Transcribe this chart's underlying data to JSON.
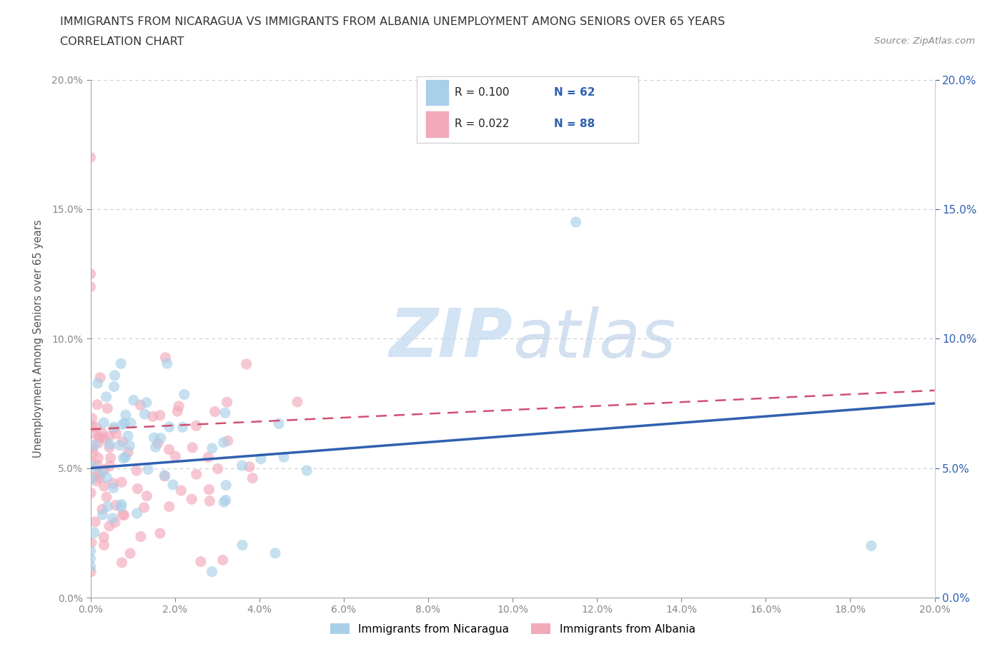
{
  "title_line1": "IMMIGRANTS FROM NICARAGUA VS IMMIGRANTS FROM ALBANIA UNEMPLOYMENT AMONG SENIORS OVER 65 YEARS",
  "title_line2": "CORRELATION CHART",
  "source_text": "Source: ZipAtlas.com",
  "ylabel": "Unemployment Among Seniors over 65 years",
  "xlim": [
    0.0,
    0.2
  ],
  "ylim": [
    0.0,
    0.2
  ],
  "nicaragua_color": "#A8D0E8",
  "albania_color": "#F2AABB",
  "trend_nicaragua_color": "#3060B0",
  "trend_albania_color": "#D05070",
  "legend_r_nicaragua": "R = 0.100",
  "legend_n_nicaragua": "N = 62",
  "legend_r_albania": "R = 0.022",
  "legend_n_albania": "N = 88",
  "watermark_zip": "ZIP",
  "watermark_atlas": "atlas",
  "background_color": "#FFFFFF",
  "grid_color": "#CCCCCC",
  "legend_label_nicaragua": "Immigrants from Nicaragua",
  "legend_label_albania": "Immigrants from Albania",
  "legend_text_color": "#3060B0",
  "title_color": "#333333",
  "source_color": "#888888",
  "tick_color": "#888888"
}
